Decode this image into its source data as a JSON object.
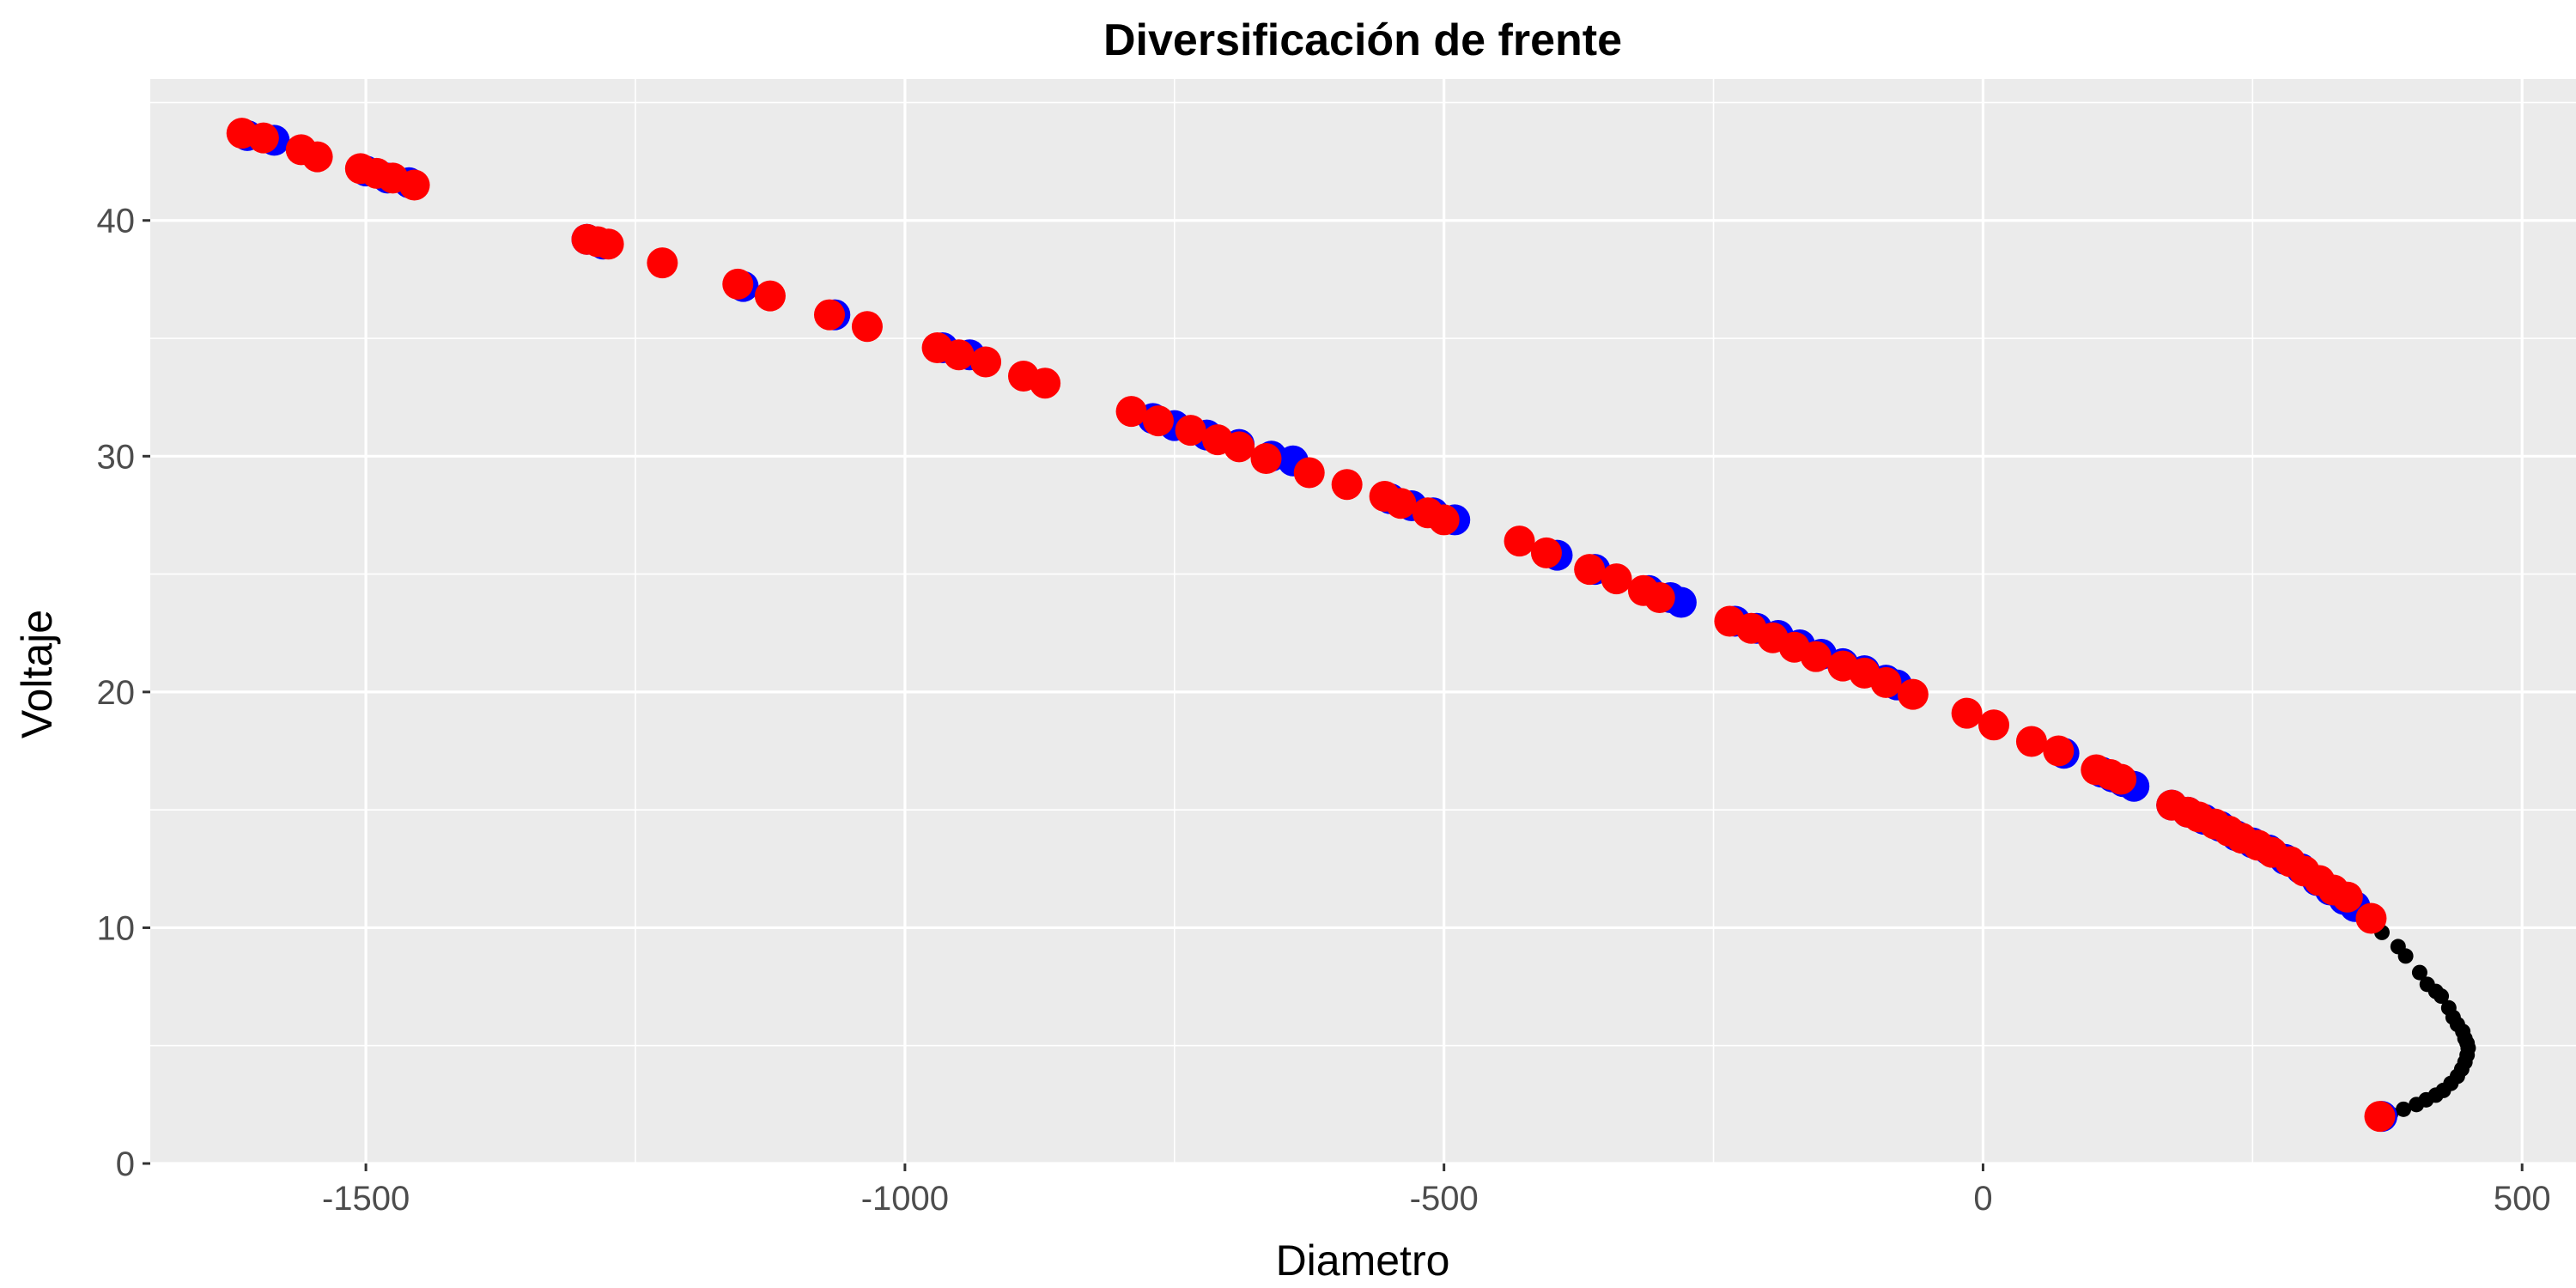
{
  "chart_data": {
    "type": "scatter",
    "title": "Diversificación de frente",
    "xlabel": "Diametro",
    "ylabel": "Voltaje",
    "xlim": [
      -1700,
      550
    ],
    "ylim": [
      0,
      46
    ],
    "x_ticks": [
      -1500,
      -1000,
      -500,
      0,
      500
    ],
    "y_ticks": [
      0,
      10,
      20,
      30,
      40
    ],
    "grid": true,
    "legend": "none",
    "colors": {
      "panel": "#ebebeb",
      "grid": "#ffffff",
      "front_all": "#000000",
      "front_selected_a": "#0000ff",
      "front_selected_b": "#ff0000"
    },
    "series": [
      {
        "color": "#000000",
        "marker_size": "small",
        "points": [
          [
            370,
            9.8
          ],
          [
            385,
            9.2
          ],
          [
            392,
            8.8
          ],
          [
            405,
            8.1
          ],
          [
            412,
            7.6
          ],
          [
            420,
            7.3
          ],
          [
            425,
            7.1
          ],
          [
            432,
            6.6
          ],
          [
            436,
            6.2
          ],
          [
            440,
            5.9
          ],
          [
            445,
            5.6
          ],
          [
            447,
            5.3
          ],
          [
            449,
            5.1
          ],
          [
            450,
            4.9
          ],
          [
            449,
            4.6
          ],
          [
            447,
            4.3
          ],
          [
            444,
            4.0
          ],
          [
            440,
            3.7
          ],
          [
            434,
            3.4
          ],
          [
            427,
            3.1
          ],
          [
            420,
            2.9
          ],
          [
            411,
            2.7
          ],
          [
            402,
            2.5
          ],
          [
            390,
            2.3
          ],
          [
            378,
            2.1
          ],
          [
            368,
            1.95
          ]
        ]
      },
      {
        "color": "#0000ff",
        "marker_size": "large",
        "points": [
          [
            -1610,
            43.6
          ],
          [
            -1585,
            43.4
          ],
          [
            -1500,
            42.1
          ],
          [
            -1480,
            41.8
          ],
          [
            -1460,
            41.6
          ],
          [
            -1295,
            39.2
          ],
          [
            -1280,
            39.0
          ],
          [
            -1150,
            37.2
          ],
          [
            -1065,
            36.0
          ],
          [
            -965,
            34.6
          ],
          [
            -940,
            34.3
          ],
          [
            -770,
            31.6
          ],
          [
            -750,
            31.3
          ],
          [
            -720,
            30.9
          ],
          [
            -690,
            30.5
          ],
          [
            -660,
            30.0
          ],
          [
            -640,
            29.8
          ],
          [
            -550,
            28.2
          ],
          [
            -530,
            27.9
          ],
          [
            -510,
            27.6
          ],
          [
            -490,
            27.3
          ],
          [
            -395,
            25.8
          ],
          [
            -360,
            25.2
          ],
          [
            -310,
            24.3
          ],
          [
            -290,
            24.0
          ],
          [
            -280,
            23.8
          ],
          [
            -230,
            23.0
          ],
          [
            -210,
            22.7
          ],
          [
            -190,
            22.4
          ],
          [
            -170,
            22.0
          ],
          [
            -150,
            21.6
          ],
          [
            -130,
            21.2
          ],
          [
            -110,
            20.9
          ],
          [
            -90,
            20.5
          ],
          [
            -80,
            20.3
          ],
          [
            75,
            17.4
          ],
          [
            110,
            16.6
          ],
          [
            120,
            16.4
          ],
          [
            130,
            16.2
          ],
          [
            140,
            16.0
          ],
          [
            175,
            15.2
          ],
          [
            190,
            14.9
          ],
          [
            205,
            14.6
          ],
          [
            220,
            14.3
          ],
          [
            235,
            13.9
          ],
          [
            250,
            13.6
          ],
          [
            265,
            13.3
          ],
          [
            280,
            12.9
          ],
          [
            295,
            12.5
          ],
          [
            310,
            12.0
          ],
          [
            322,
            11.6
          ],
          [
            335,
            11.2
          ],
          [
            345,
            10.9
          ],
          [
            370,
            2.0
          ]
        ]
      },
      {
        "color": "#ff0000",
        "marker_size": "large",
        "points": [
          [
            -1615,
            43.7
          ],
          [
            -1595,
            43.5
          ],
          [
            -1560,
            43.0
          ],
          [
            -1545,
            42.7
          ],
          [
            -1505,
            42.2
          ],
          [
            -1490,
            42.0
          ],
          [
            -1475,
            41.8
          ],
          [
            -1455,
            41.5
          ],
          [
            -1295,
            39.2
          ],
          [
            -1285,
            39.1
          ],
          [
            -1275,
            39.0
          ],
          [
            -1225,
            38.2
          ],
          [
            -1155,
            37.3
          ],
          [
            -1125,
            36.8
          ],
          [
            -1070,
            36.0
          ],
          [
            -1035,
            35.5
          ],
          [
            -970,
            34.6
          ],
          [
            -950,
            34.3
          ],
          [
            -925,
            34.0
          ],
          [
            -890,
            33.4
          ],
          [
            -870,
            33.1
          ],
          [
            -790,
            31.9
          ],
          [
            -765,
            31.5
          ],
          [
            -735,
            31.1
          ],
          [
            -710,
            30.7
          ],
          [
            -690,
            30.4
          ],
          [
            -665,
            29.9
          ],
          [
            -625,
            29.3
          ],
          [
            -590,
            28.8
          ],
          [
            -555,
            28.3
          ],
          [
            -540,
            28.0
          ],
          [
            -515,
            27.6
          ],
          [
            -500,
            27.3
          ],
          [
            -430,
            26.4
          ],
          [
            -405,
            25.9
          ],
          [
            -365,
            25.2
          ],
          [
            -340,
            24.8
          ],
          [
            -315,
            24.3
          ],
          [
            -300,
            24.0
          ],
          [
            -235,
            23.0
          ],
          [
            -215,
            22.7
          ],
          [
            -195,
            22.3
          ],
          [
            -175,
            21.9
          ],
          [
            -155,
            21.5
          ],
          [
            -130,
            21.1
          ],
          [
            -110,
            20.8
          ],
          [
            -90,
            20.4
          ],
          [
            -65,
            19.9
          ],
          [
            -15,
            19.1
          ],
          [
            10,
            18.6
          ],
          [
            45,
            17.9
          ],
          [
            70,
            17.5
          ],
          [
            105,
            16.7
          ],
          [
            118,
            16.5
          ],
          [
            128,
            16.3
          ],
          [
            175,
            15.2
          ],
          [
            190,
            14.9
          ],
          [
            200,
            14.7
          ],
          [
            215,
            14.4
          ],
          [
            228,
            14.1
          ],
          [
            240,
            13.8
          ],
          [
            255,
            13.5
          ],
          [
            268,
            13.2
          ],
          [
            285,
            12.8
          ],
          [
            298,
            12.4
          ],
          [
            312,
            12.0
          ],
          [
            325,
            11.6
          ],
          [
            338,
            11.3
          ],
          [
            360,
            10.4
          ],
          [
            368,
            2.0
          ]
        ]
      }
    ]
  }
}
